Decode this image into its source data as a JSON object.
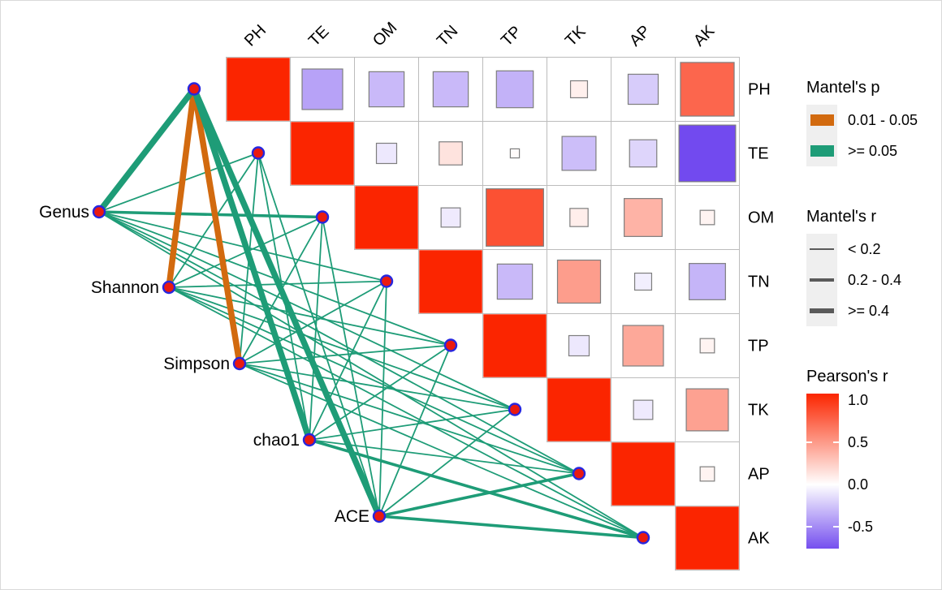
{
  "figure": {
    "type": "mantel-test-correlation-network-heatmap",
    "background": "#ffffff"
  },
  "chart_data": {
    "type": "heatmap",
    "variables": [
      "PH",
      "TE",
      "OM",
      "TN",
      "TP",
      "TK",
      "AP",
      "AK"
    ],
    "diversity_nodes": [
      "Genus",
      "Shannon",
      "Simpson",
      "chao1",
      "ACE"
    ],
    "pearson_r_upper": [
      [
        1,
        -0.4,
        -0.3,
        -0.3,
        -0.33,
        0.07,
        -0.22,
        0.7
      ],
      [
        null,
        1,
        -0.1,
        0.13,
        0.02,
        -0.28,
        -0.18,
        -0.78
      ],
      [
        null,
        null,
        1,
        -0.09,
        0.8,
        0.08,
        0.35,
        0.05
      ],
      [
        null,
        null,
        null,
        1,
        -0.3,
        0.45,
        -0.07,
        -0.32
      ],
      [
        null,
        null,
        null,
        null,
        1,
        -0.1,
        0.4,
        0.05
      ],
      [
        null,
        null,
        null,
        null,
        null,
        1,
        -0.09,
        0.43
      ],
      [
        null,
        null,
        null,
        null,
        null,
        null,
        1,
        0.05
      ],
      [
        null,
        null,
        null,
        null,
        null,
        null,
        null,
        1
      ]
    ],
    "mantel_edges": [
      {
        "source": "Genus",
        "target": "PH",
        "mantel_r": ">= 0.4",
        "mantel_p": ">= 0.05"
      },
      {
        "source": "Genus",
        "target": "TE",
        "mantel_r": "< 0.2",
        "mantel_p": ">= 0.05"
      },
      {
        "source": "Genus",
        "target": "OM",
        "mantel_r": "0.2 - 0.4",
        "mantel_p": ">= 0.05"
      },
      {
        "source": "Genus",
        "target": "TN",
        "mantel_r": "< 0.2",
        "mantel_p": ">= 0.05"
      },
      {
        "source": "Genus",
        "target": "TP",
        "mantel_r": "< 0.2",
        "mantel_p": ">= 0.05"
      },
      {
        "source": "Genus",
        "target": "TK",
        "mantel_r": "< 0.2",
        "mantel_p": ">= 0.05"
      },
      {
        "source": "Genus",
        "target": "AP",
        "mantel_r": "< 0.2",
        "mantel_p": ">= 0.05"
      },
      {
        "source": "Genus",
        "target": "AK",
        "mantel_r": "< 0.2",
        "mantel_p": ">= 0.05"
      },
      {
        "source": "Shannon",
        "target": "PH",
        "mantel_r": ">= 0.4",
        "mantel_p": "0.01 - 0.05"
      },
      {
        "source": "Shannon",
        "target": "TE",
        "mantel_r": "< 0.2",
        "mantel_p": ">= 0.05"
      },
      {
        "source": "Shannon",
        "target": "OM",
        "mantel_r": "< 0.2",
        "mantel_p": ">= 0.05"
      },
      {
        "source": "Shannon",
        "target": "TN",
        "mantel_r": "< 0.2",
        "mantel_p": ">= 0.05"
      },
      {
        "source": "Shannon",
        "target": "TP",
        "mantel_r": "< 0.2",
        "mantel_p": ">= 0.05"
      },
      {
        "source": "Shannon",
        "target": "TK",
        "mantel_r": "< 0.2",
        "mantel_p": ">= 0.05"
      },
      {
        "source": "Shannon",
        "target": "AP",
        "mantel_r": "< 0.2",
        "mantel_p": ">= 0.05"
      },
      {
        "source": "Shannon",
        "target": "AK",
        "mantel_r": "< 0.2",
        "mantel_p": ">= 0.05"
      },
      {
        "source": "Simpson",
        "target": "PH",
        "mantel_r": ">= 0.4",
        "mantel_p": "0.01 - 0.05"
      },
      {
        "source": "Simpson",
        "target": "TE",
        "mantel_r": "< 0.2",
        "mantel_p": ">= 0.05"
      },
      {
        "source": "Simpson",
        "target": "OM",
        "mantel_r": "< 0.2",
        "mantel_p": ">= 0.05"
      },
      {
        "source": "Simpson",
        "target": "TN",
        "mantel_r": "< 0.2",
        "mantel_p": ">= 0.05"
      },
      {
        "source": "Simpson",
        "target": "TP",
        "mantel_r": "< 0.2",
        "mantel_p": ">= 0.05"
      },
      {
        "source": "Simpson",
        "target": "TK",
        "mantel_r": "< 0.2",
        "mantel_p": ">= 0.05"
      },
      {
        "source": "Simpson",
        "target": "AP",
        "mantel_r": "< 0.2",
        "mantel_p": ">= 0.05"
      },
      {
        "source": "Simpson",
        "target": "AK",
        "mantel_r": "< 0.2",
        "mantel_p": ">= 0.05"
      },
      {
        "source": "chao1",
        "target": "PH",
        "mantel_r": ">= 0.4",
        "mantel_p": ">= 0.05"
      },
      {
        "source": "chao1",
        "target": "TE",
        "mantel_r": "< 0.2",
        "mantel_p": ">= 0.05"
      },
      {
        "source": "chao1",
        "target": "OM",
        "mantel_r": "< 0.2",
        "mantel_p": ">= 0.05"
      },
      {
        "source": "chao1",
        "target": "TN",
        "mantel_r": "< 0.2",
        "mantel_p": ">= 0.05"
      },
      {
        "source": "chao1",
        "target": "TP",
        "mantel_r": "< 0.2",
        "mantel_p": ">= 0.05"
      },
      {
        "source": "chao1",
        "target": "TK",
        "mantel_r": "< 0.2",
        "mantel_p": ">= 0.05"
      },
      {
        "source": "chao1",
        "target": "AP",
        "mantel_r": "< 0.2",
        "mantel_p": ">= 0.05"
      },
      {
        "source": "chao1",
        "target": "AK",
        "mantel_r": "0.2 - 0.4",
        "mantel_p": ">= 0.05"
      },
      {
        "source": "ACE",
        "target": "PH",
        "mantel_r": ">= 0.4",
        "mantel_p": ">= 0.05"
      },
      {
        "source": "ACE",
        "target": "TE",
        "mantel_r": "< 0.2",
        "mantel_p": ">= 0.05"
      },
      {
        "source": "ACE",
        "target": "OM",
        "mantel_r": "< 0.2",
        "mantel_p": ">= 0.05"
      },
      {
        "source": "ACE",
        "target": "TN",
        "mantel_r": "< 0.2",
        "mantel_p": ">= 0.05"
      },
      {
        "source": "ACE",
        "target": "TP",
        "mantel_r": "< 0.2",
        "mantel_p": ">= 0.05"
      },
      {
        "source": "ACE",
        "target": "TK",
        "mantel_r": "< 0.2",
        "mantel_p": ">= 0.05"
      },
      {
        "source": "ACE",
        "target": "AP",
        "mantel_r": "0.2 - 0.4",
        "mantel_p": ">= 0.05"
      },
      {
        "source": "ACE",
        "target": "AK",
        "mantel_r": "0.2 - 0.4",
        "mantel_p": ">= 0.05"
      }
    ]
  },
  "legend_mantel_p": {
    "title": "Mantel's p",
    "items": [
      {
        "label": "0.01 - 0.05",
        "color": "#D26A0F"
      },
      {
        "label": ">= 0.05",
        "color": "#1E9C77"
      }
    ]
  },
  "legend_mantel_r": {
    "title": "Mantel's r",
    "items": [
      {
        "label": "< 0.2",
        "line_width": 2
      },
      {
        "label": "0.2 - 0.4",
        "line_width": 4
      },
      {
        "label": ">= 0.4",
        "line_width": 6.5
      }
    ]
  },
  "legend_pearson": {
    "title": "Pearson's r",
    "ticks": [
      "1.0",
      "0.5",
      "0.0",
      "-0.5"
    ],
    "color_positive": "#FB2500",
    "color_zero": "#FFFFFF",
    "color_negative": "#4A17EA",
    "diagonal_red": "#FB2500"
  },
  "plot_colors": {
    "node_fill": "#EA1A10",
    "node_ring": "#2727DF",
    "cell_border": "#BCBCBC",
    "square_border": "#7E7E7E"
  }
}
